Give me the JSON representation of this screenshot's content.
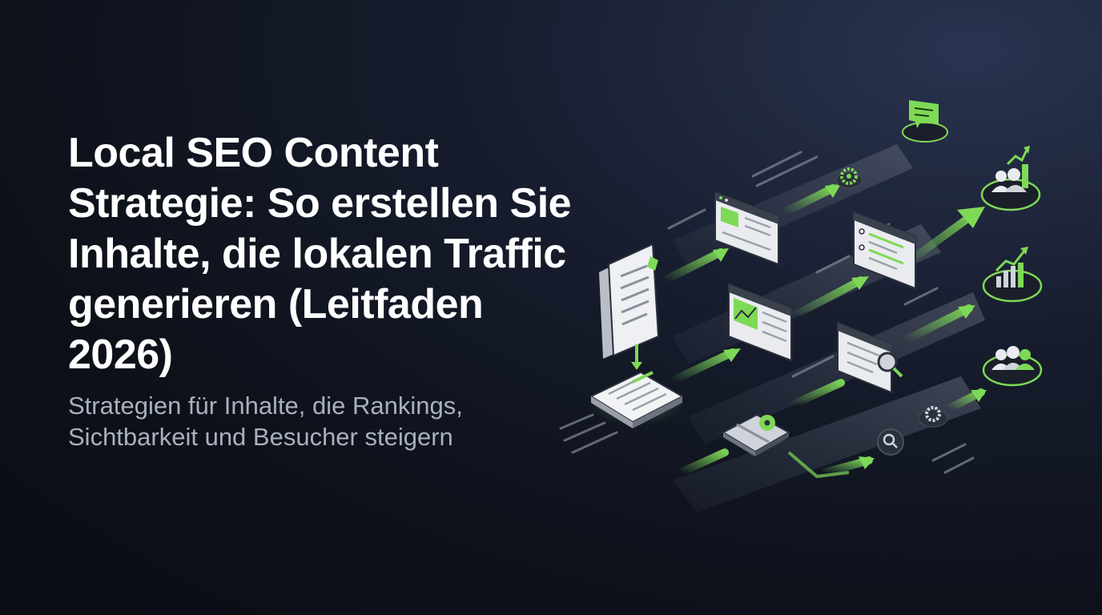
{
  "hero": {
    "title": "Local SEO Content Strategie: So erstellen Sie Inhalte, die lokalen Traffic generieren (Leitfaden 2026)",
    "subtitle": "Strategien für Inhalte, die Rankings, Sichtbarkeit und Besucher steigern"
  },
  "colors": {
    "accent": "#7ed957",
    "background": "#0d111a",
    "card": "#e9ebef",
    "text": "#ffffff",
    "muted_text": "#a9b0bd"
  },
  "illustration": {
    "icons": [
      "document-stack-icon",
      "content-list-icon",
      "browser-window-icon",
      "image-page-icon",
      "search-results-icon",
      "map-pin-icon",
      "chat-bubble-icon",
      "gear-icon",
      "magnifier-icon",
      "users-growth-icon",
      "bar-chart-growth-icon",
      "users-icon"
    ]
  }
}
